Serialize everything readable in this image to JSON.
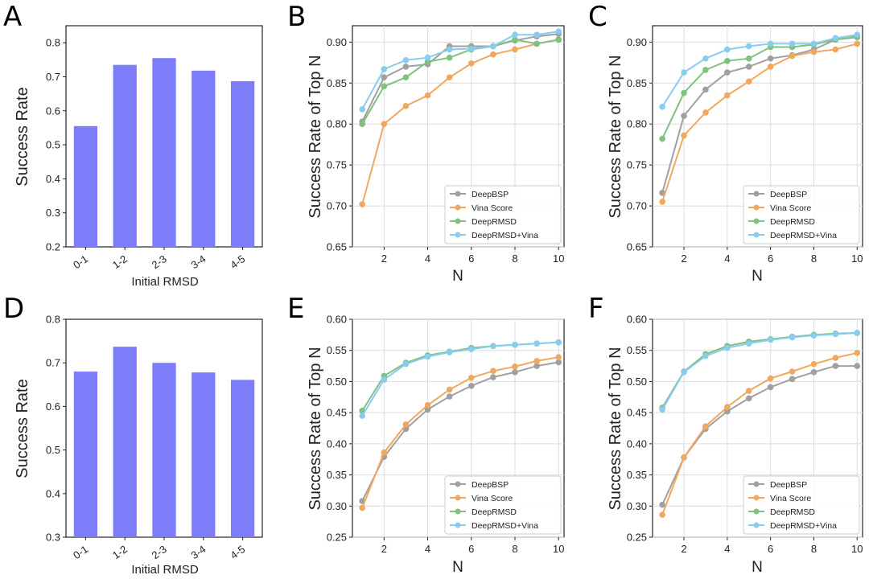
{
  "colors": {
    "bar": "#7d7dfa",
    "DeepBSP": "#a0a0a0",
    "Vina Score": "#f0a860",
    "DeepRMSD": "#80c080",
    "DeepRMSD+Vina": "#88ccf0"
  },
  "chart_data": [
    {
      "id": "A",
      "label": "A",
      "type": "bar",
      "categories": [
        "0-1",
        "1-2",
        "2-3",
        "3-4",
        "4-5"
      ],
      "values": [
        0.555,
        0.735,
        0.755,
        0.718,
        0.687
      ],
      "ylim": [
        0.2,
        0.85
      ],
      "yticks": [
        "0.2",
        "0.3",
        "0.4",
        "0.5",
        "0.6",
        "0.7",
        "0.8"
      ],
      "xlabel": "Initial RMSD",
      "ylabel": "Success Rate"
    },
    {
      "id": "B",
      "label": "B",
      "type": "line",
      "x": [
        1,
        2,
        3,
        4,
        5,
        6,
        7,
        8,
        9,
        10
      ],
      "xticks": [
        "2",
        "4",
        "6",
        "8",
        "10"
      ],
      "ylim": [
        0.65,
        0.92
      ],
      "yticks": [
        "0.65",
        "0.70",
        "0.75",
        "0.80",
        "0.85",
        "0.90"
      ],
      "xlabel": "N",
      "ylabel": "Success Rate of Top N",
      "legend": "bottom-right",
      "series": [
        {
          "name": "DeepBSP",
          "values": [
            0.803,
            0.857,
            0.87,
            0.873,
            0.895,
            0.895,
            0.895,
            0.902,
            0.907,
            0.91
          ]
        },
        {
          "name": "Vina Score",
          "values": [
            0.702,
            0.8,
            0.822,
            0.835,
            0.857,
            0.874,
            0.885,
            0.891,
            0.898,
            0.903
          ]
        },
        {
          "name": "DeepRMSD",
          "values": [
            0.8,
            0.846,
            0.857,
            0.876,
            0.881,
            0.891,
            0.895,
            0.903,
            0.898,
            0.903
          ]
        },
        {
          "name": "DeepRMSD+Vina",
          "values": [
            0.818,
            0.867,
            0.878,
            0.881,
            0.891,
            0.892,
            0.895,
            0.909,
            0.909,
            0.913
          ]
        }
      ]
    },
    {
      "id": "C",
      "label": "C",
      "type": "line",
      "x": [
        1,
        2,
        3,
        4,
        5,
        6,
        7,
        8,
        9,
        10
      ],
      "xticks": [
        "2",
        "4",
        "6",
        "8",
        "10"
      ],
      "ylim": [
        0.65,
        0.92
      ],
      "yticks": [
        "0.65",
        "0.70",
        "0.75",
        "0.80",
        "0.85",
        "0.90"
      ],
      "xlabel": "N",
      "ylabel": "Success Rate of Top N",
      "legend": "bottom-right",
      "series": [
        {
          "name": "DeepBSP",
          "values": [
            0.716,
            0.81,
            0.842,
            0.863,
            0.87,
            0.88,
            0.884,
            0.891,
            0.903,
            0.906
          ]
        },
        {
          "name": "Vina Score",
          "values": [
            0.705,
            0.786,
            0.814,
            0.835,
            0.852,
            0.87,
            0.883,
            0.888,
            0.891,
            0.898
          ]
        },
        {
          "name": "DeepRMSD",
          "values": [
            0.782,
            0.838,
            0.866,
            0.877,
            0.88,
            0.894,
            0.894,
            0.897,
            0.903,
            0.907
          ]
        },
        {
          "name": "DeepRMSD+Vina",
          "values": [
            0.821,
            0.863,
            0.88,
            0.891,
            0.895,
            0.898,
            0.898,
            0.898,
            0.905,
            0.909
          ]
        }
      ]
    },
    {
      "id": "D",
      "label": "D",
      "type": "bar",
      "categories": [
        "0-1",
        "1-2",
        "2-3",
        "3-4",
        "4-5"
      ],
      "values": [
        0.68,
        0.737,
        0.7,
        0.678,
        0.661
      ],
      "ylim": [
        0.3,
        0.8
      ],
      "yticks": [
        "0.3",
        "0.4",
        "0.5",
        "0.6",
        "0.7",
        "0.8"
      ],
      "xlabel": "Initial RMSD",
      "ylabel": "Success Rate"
    },
    {
      "id": "E",
      "label": "E",
      "type": "line",
      "x": [
        1,
        2,
        3,
        4,
        5,
        6,
        7,
        8,
        9,
        10
      ],
      "xticks": [
        "2",
        "4",
        "6",
        "8",
        "10"
      ],
      "ylim": [
        0.25,
        0.6
      ],
      "yticks": [
        "0.25",
        "0.30",
        "0.35",
        "0.40",
        "0.45",
        "0.50",
        "0.55",
        "0.60"
      ],
      "xlabel": "N",
      "ylabel": "Success Rate of Top N",
      "legend": "bottom-right",
      "series": [
        {
          "name": "DeepBSP",
          "values": [
            0.308,
            0.379,
            0.424,
            0.455,
            0.476,
            0.493,
            0.507,
            0.515,
            0.525,
            0.531
          ]
        },
        {
          "name": "Vina Score",
          "values": [
            0.297,
            0.386,
            0.431,
            0.462,
            0.487,
            0.506,
            0.517,
            0.524,
            0.533,
            0.539
          ]
        },
        {
          "name": "DeepRMSD",
          "values": [
            0.453,
            0.509,
            0.53,
            0.542,
            0.548,
            0.554,
            0.557,
            0.559,
            0.561,
            0.563
          ]
        },
        {
          "name": "DeepRMSD+Vina",
          "values": [
            0.445,
            0.503,
            0.528,
            0.54,
            0.547,
            0.552,
            0.557,
            0.559,
            0.561,
            0.563
          ]
        }
      ]
    },
    {
      "id": "F",
      "label": "F",
      "type": "line",
      "x": [
        1,
        2,
        3,
        4,
        5,
        6,
        7,
        8,
        9,
        10
      ],
      "xticks": [
        "2",
        "4",
        "6",
        "8",
        "10"
      ],
      "ylim": [
        0.25,
        0.6
      ],
      "yticks": [
        "0.25",
        "0.30",
        "0.35",
        "0.40",
        "0.45",
        "0.50",
        "0.55",
        "0.60"
      ],
      "xlabel": "N",
      "ylabel": "Success Rate of Top N",
      "legend": "bottom-right",
      "series": [
        {
          "name": "DeepBSP",
          "values": [
            0.302,
            0.378,
            0.424,
            0.452,
            0.473,
            0.491,
            0.504,
            0.515,
            0.525,
            0.525
          ]
        },
        {
          "name": "Vina Score",
          "values": [
            0.286,
            0.378,
            0.428,
            0.459,
            0.485,
            0.505,
            0.516,
            0.528,
            0.538,
            0.546
          ]
        },
        {
          "name": "DeepRMSD",
          "values": [
            0.458,
            0.516,
            0.544,
            0.557,
            0.564,
            0.568,
            0.572,
            0.575,
            0.577,
            0.578
          ]
        },
        {
          "name": "DeepRMSD+Vina",
          "values": [
            0.455,
            0.515,
            0.541,
            0.554,
            0.561,
            0.567,
            0.571,
            0.574,
            0.576,
            0.578
          ]
        }
      ]
    }
  ]
}
